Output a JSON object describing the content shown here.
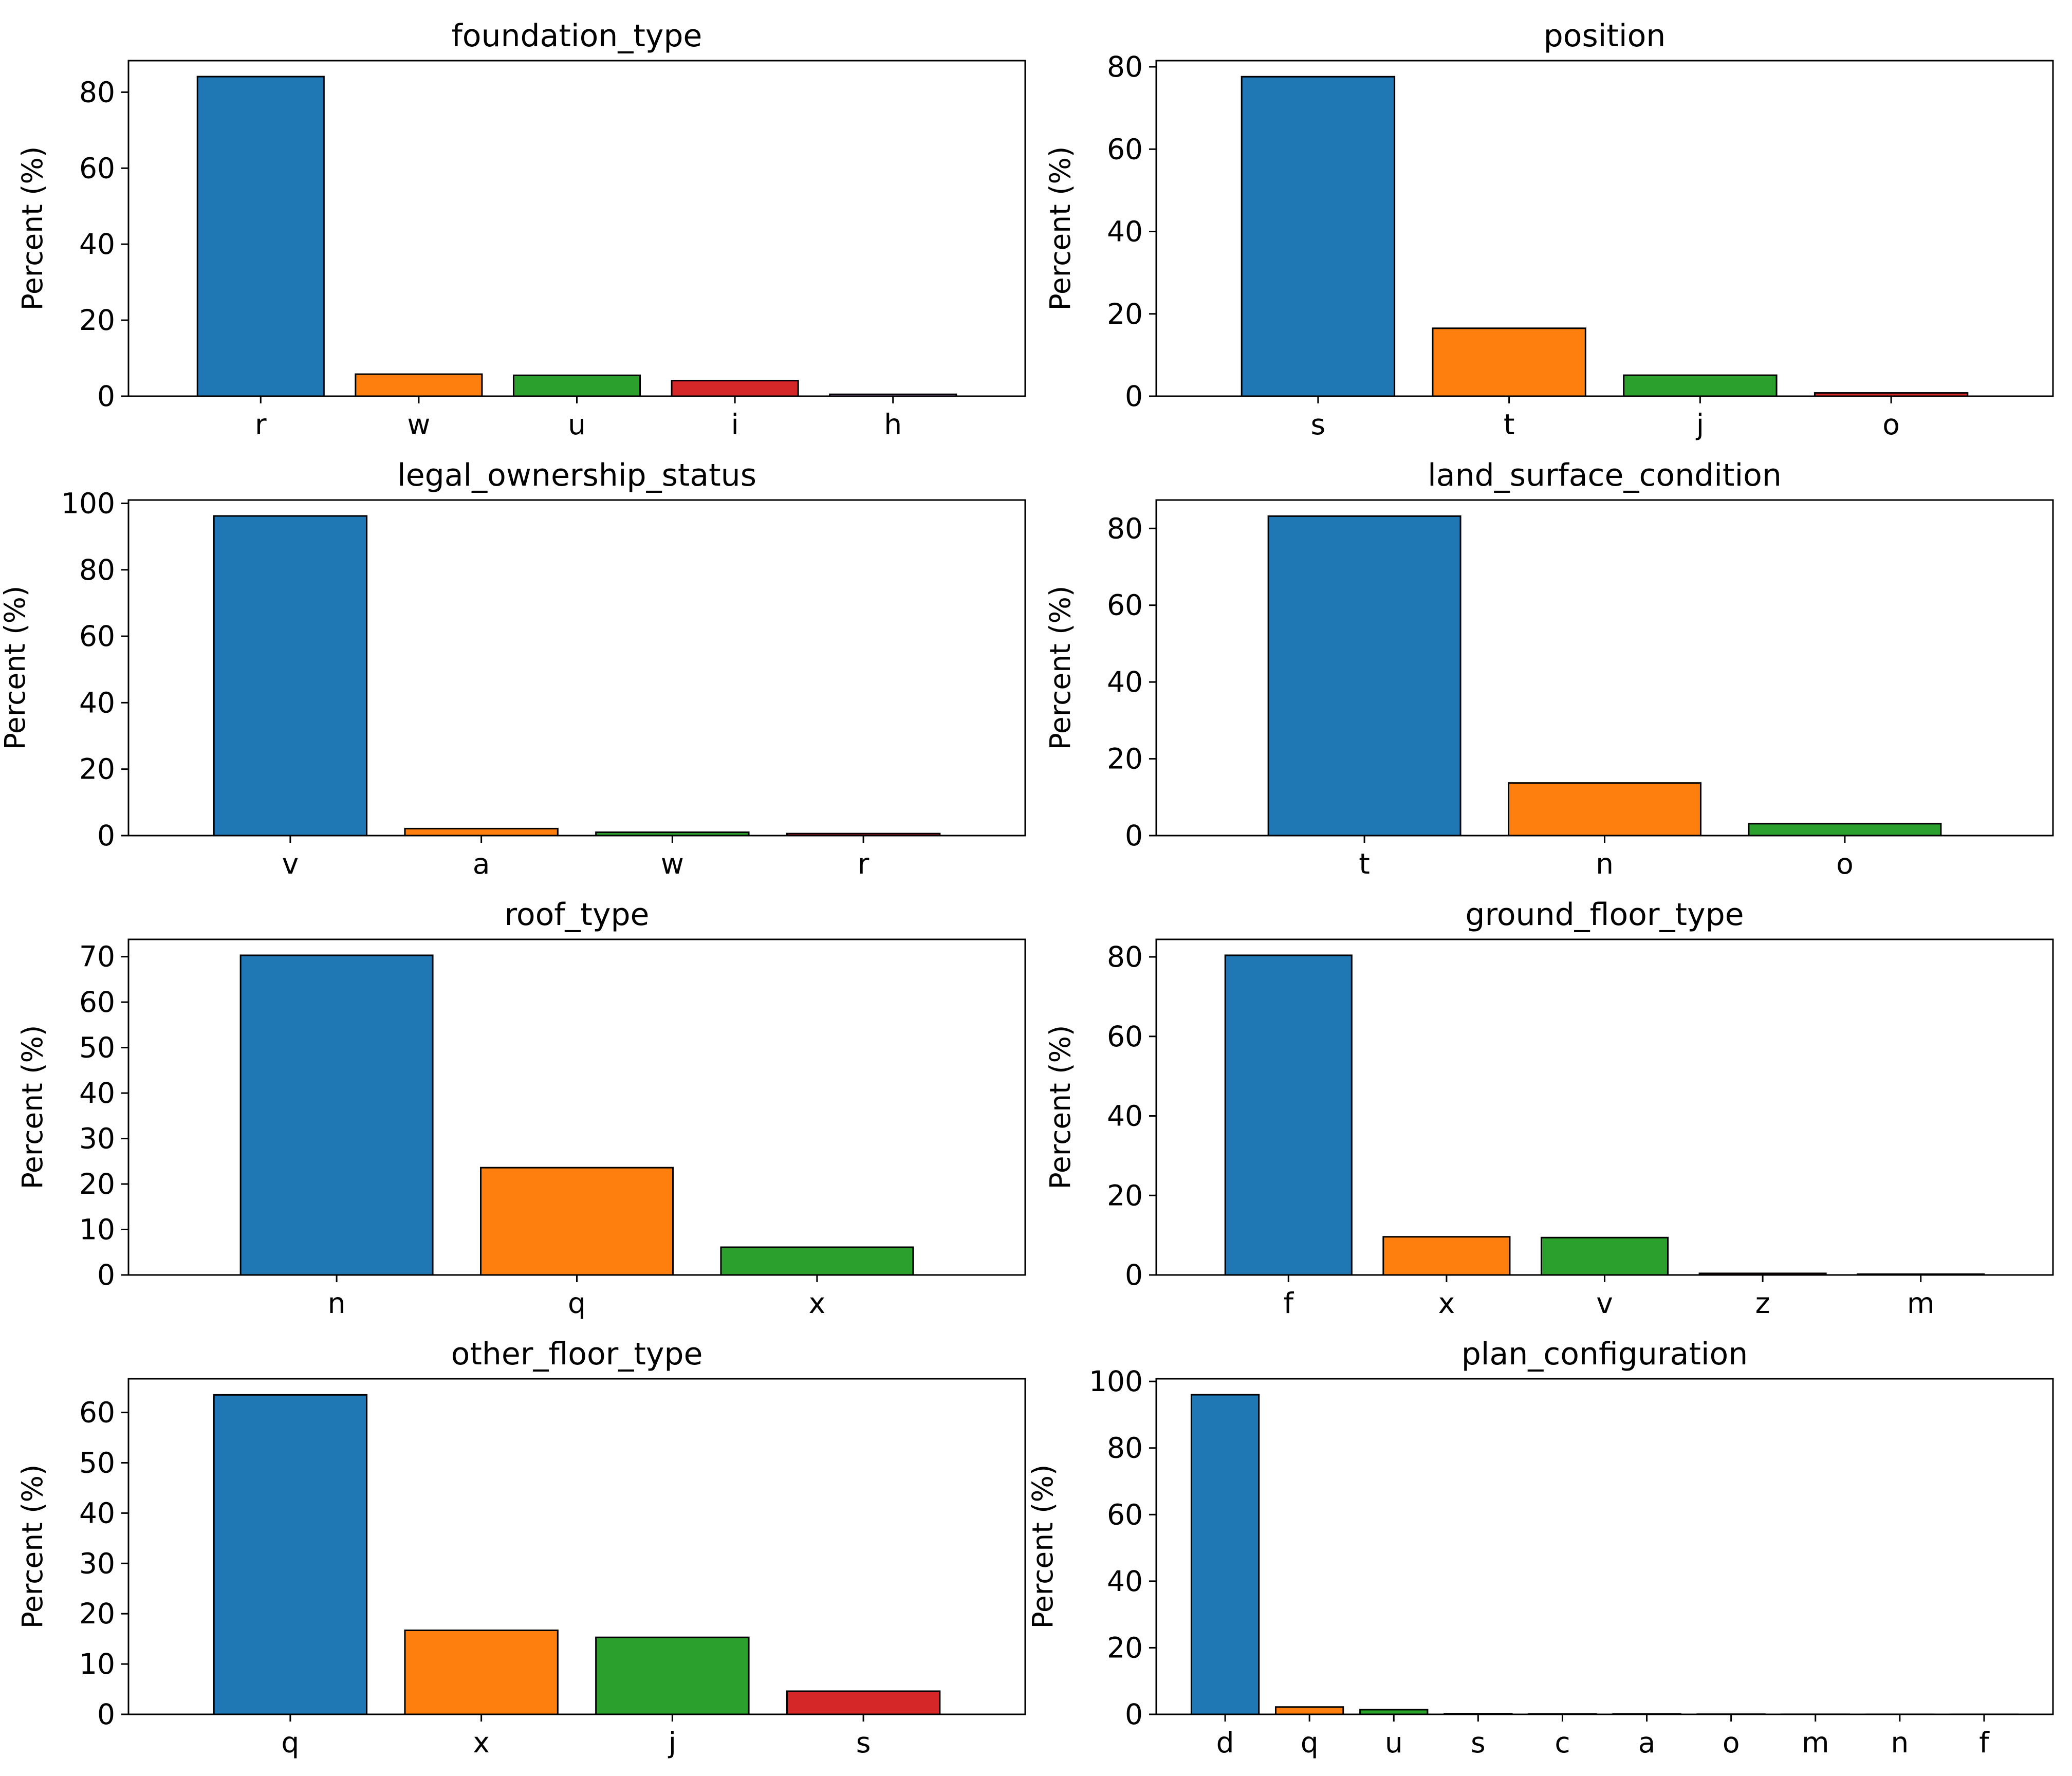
{
  "colors": {
    "series": [
      "#1f77b4",
      "#ff7f0e",
      "#2ca02c",
      "#d62728",
      "#9467bd",
      "#8c564b",
      "#e377c2",
      "#7f7f7f",
      "#bcbd22",
      "#17becf"
    ],
    "edge": "#000000"
  },
  "chart_data": [
    {
      "type": "bar",
      "title": "foundation_type",
      "xlabel": "",
      "ylabel": "Percent (%)",
      "categories": [
        "r",
        "w",
        "u",
        "i",
        "h"
      ],
      "values": [
        84.1,
        5.8,
        5.5,
        4.1,
        0.5
      ],
      "ylim": [
        0,
        88.3
      ],
      "yticks": [
        0,
        20,
        40,
        60,
        80
      ],
      "grid": false
    },
    {
      "type": "bar",
      "title": "position",
      "xlabel": "",
      "ylabel": "Percent (%)",
      "categories": [
        "s",
        "t",
        "j",
        "o"
      ],
      "values": [
        77.6,
        16.5,
        5.1,
        0.8
      ],
      "ylim": [
        0,
        81.5
      ],
      "yticks": [
        0,
        20,
        40,
        60,
        80
      ],
      "grid": false
    },
    {
      "type": "bar",
      "title": "legal_ownership_status",
      "xlabel": "",
      "ylabel": "Percent (%)",
      "categories": [
        "v",
        "a",
        "w",
        "r"
      ],
      "values": [
        96.2,
        2.1,
        1.0,
        0.6
      ],
      "ylim": [
        0,
        101
      ],
      "yticks": [
        0,
        20,
        40,
        60,
        80,
        100
      ],
      "grid": false
    },
    {
      "type": "bar",
      "title": "land_surface_condition",
      "xlabel": "",
      "ylabel": "Percent (%)",
      "categories": [
        "t",
        "n",
        "o"
      ],
      "values": [
        83.2,
        13.7,
        3.1
      ],
      "ylim": [
        0,
        87.4
      ],
      "yticks": [
        0,
        20,
        40,
        60,
        80
      ],
      "grid": false
    },
    {
      "type": "bar",
      "title": "roof_type",
      "xlabel": "",
      "ylabel": "Percent (%)",
      "categories": [
        "n",
        "q",
        "x"
      ],
      "values": [
        70.3,
        23.6,
        6.1
      ],
      "ylim": [
        0,
        73.8
      ],
      "yticks": [
        0,
        10,
        20,
        30,
        40,
        50,
        60,
        70
      ],
      "grid": false
    },
    {
      "type": "bar",
      "title": "ground_floor_type",
      "xlabel": "",
      "ylabel": "Percent (%)",
      "categories": [
        "f",
        "x",
        "v",
        "z",
        "m"
      ],
      "values": [
        80.4,
        9.6,
        9.4,
        0.4,
        0.2
      ],
      "ylim": [
        0,
        84.4
      ],
      "yticks": [
        0,
        20,
        40,
        60,
        80
      ],
      "grid": false
    },
    {
      "type": "bar",
      "title": "other_floor_type",
      "xlabel": "",
      "ylabel": "Percent (%)",
      "categories": [
        "q",
        "x",
        "j",
        "s"
      ],
      "values": [
        63.5,
        16.7,
        15.3,
        4.6
      ],
      "ylim": [
        0,
        66.7
      ],
      "yticks": [
        0,
        10,
        20,
        30,
        40,
        50,
        60
      ],
      "grid": false
    },
    {
      "type": "bar",
      "title": "plan_configuration",
      "xlabel": "",
      "ylabel": "Percent (%)",
      "categories": [
        "d",
        "q",
        "u",
        "s",
        "c",
        "a",
        "o",
        "m",
        "n",
        "f"
      ],
      "values": [
        96.0,
        2.2,
        1.4,
        0.2,
        0.1,
        0.1,
        0.05,
        0.02,
        0.01,
        0.01
      ],
      "ylim": [
        0,
        100.8
      ],
      "yticks": [
        0,
        20,
        40,
        60,
        80,
        100
      ],
      "grid": false
    }
  ]
}
